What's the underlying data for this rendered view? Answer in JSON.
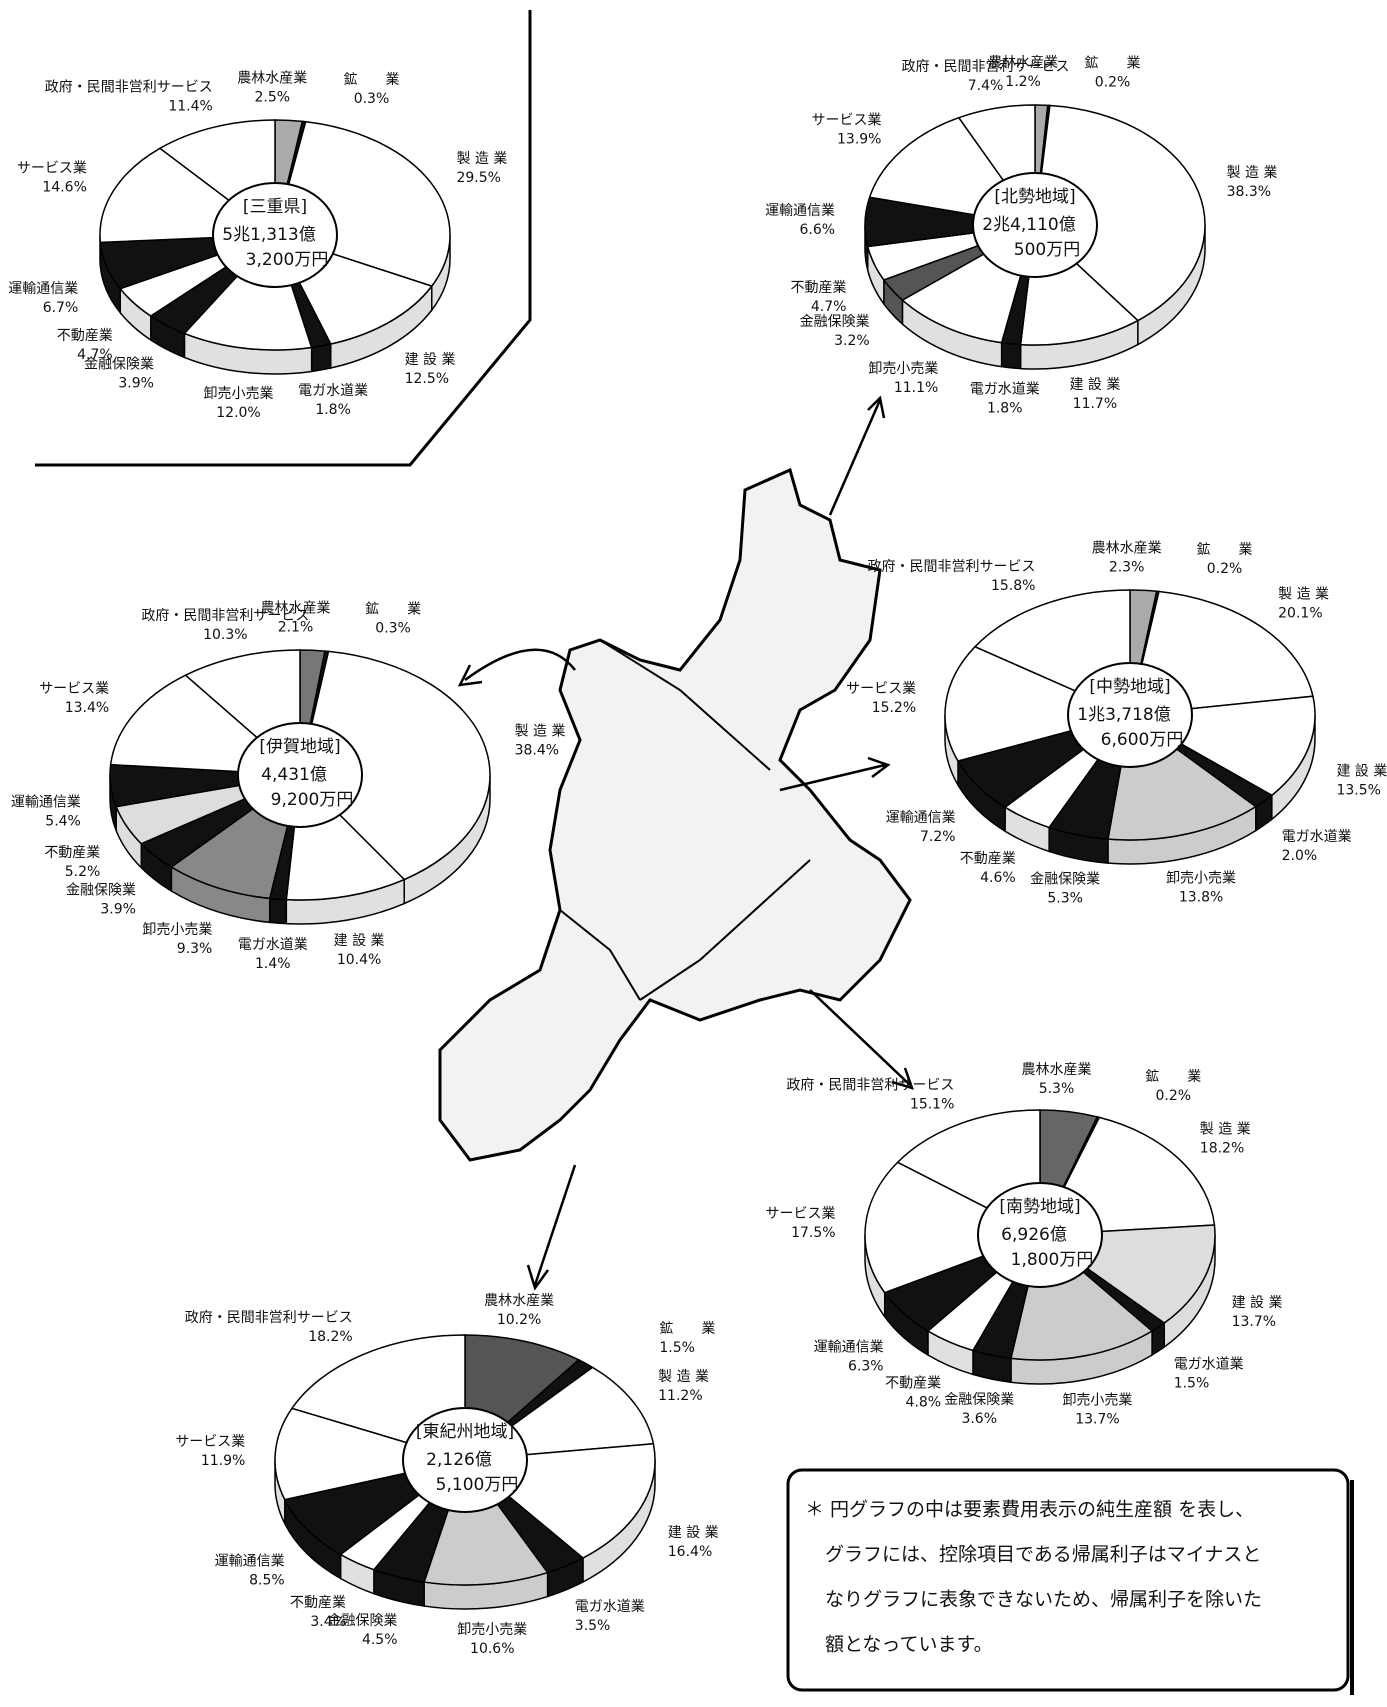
{
  "chart_data": [
    {
      "type": "pie",
      "title": "[三重県]",
      "center_text": [
        "5兆1,313億",
        "3,200万円"
      ],
      "categories": [
        "農林水産業",
        "鉱　　業",
        "製 造 業",
        "建 設 業",
        "電ガ水道業",
        "卸売小売業",
        "金融保険業",
        "不動産業",
        "運輸通信業",
        "サービス業",
        "政府・民間非営利サービス"
      ],
      "values": [
        2.5,
        0.3,
        29.5,
        12.5,
        1.8,
        12.0,
        3.9,
        4.7,
        6.7,
        14.6,
        11.4
      ],
      "value_labels": [
        "2.5%",
        "0.3%",
        "29.5%",
        "12.5%",
        "1.8%",
        "12.0%",
        "3.9%",
        "4.7%",
        "6.7%",
        "14.6%",
        "11.4%"
      ],
      "colors": [
        "#aaaaaa",
        "#111111",
        "#ffffff",
        "#ffffff",
        "#111111",
        "#ffffff",
        "#111111",
        "#ffffff",
        "#111111",
        "#ffffff",
        "#ffffff"
      ]
    },
    {
      "type": "pie",
      "title": "[北勢地域]",
      "center_text": [
        "2兆4,110億",
        "500万円"
      ],
      "categories": [
        "農林水産業",
        "鉱　　業",
        "製 造 業",
        "建 設 業",
        "電ガ水道業",
        "卸売小売業",
        "金融保険業",
        "不動産業",
        "運輸通信業",
        "サービス業",
        "政府・民間非営利サービス"
      ],
      "values": [
        1.2,
        0.2,
        38.3,
        11.7,
        1.8,
        11.1,
        3.2,
        4.7,
        6.6,
        13.9,
        7.4
      ],
      "value_labels": [
        "1.2%",
        "0.2%",
        "38.3%",
        "11.7%",
        "1.8%",
        "11.1%",
        "3.2%",
        "4.7%",
        "6.6%",
        "13.9%",
        "7.4%"
      ],
      "colors": [
        "#aaaaaa",
        "#111111",
        "#ffffff",
        "#ffffff",
        "#111111",
        "#ffffff",
        "#555555",
        "#ffffff",
        "#111111",
        "#ffffff",
        "#ffffff"
      ]
    },
    {
      "type": "pie",
      "title": "[伊賀地域]",
      "center_text": [
        "4,431億",
        "9,200万円"
      ],
      "categories": [
        "農林水産業",
        "鉱　　業",
        "製 造 業",
        "建 設 業",
        "電ガ水道業",
        "卸売小売業",
        "金融保険業",
        "不動産業",
        "運輸通信業",
        "サービス業",
        "政府・民間非営利サービス"
      ],
      "values": [
        2.1,
        0.3,
        38.4,
        10.4,
        1.4,
        9.3,
        3.9,
        5.2,
        5.4,
        13.4,
        10.3
      ],
      "value_labels": [
        "2.1%",
        "0.3%",
        "38.4%",
        "10.4%",
        "1.4%",
        "9.3%",
        "3.9%",
        "5.2%",
        "5.4%",
        "13.4%",
        "10.3%"
      ],
      "colors": [
        "#777777",
        "#111111",
        "#ffffff",
        "#ffffff",
        "#111111",
        "#888888",
        "#111111",
        "#dddddd",
        "#111111",
        "#ffffff",
        "#ffffff"
      ]
    },
    {
      "type": "pie",
      "title": "[中勢地域]",
      "center_text": [
        "1兆3,718億",
        "6,600万円"
      ],
      "categories": [
        "農林水産業",
        "鉱　　業",
        "製 造 業",
        "建 設 業",
        "電ガ水道業",
        "卸売小売業",
        "金融保険業",
        "不動産業",
        "運輸通信業",
        "サービス業",
        "政府・民間非営利サービス"
      ],
      "values": [
        2.3,
        0.2,
        20.1,
        13.5,
        2.0,
        13.8,
        5.3,
        4.6,
        7.2,
        15.2,
        15.8
      ],
      "value_labels": [
        "2.3%",
        "0.2%",
        "20.1%",
        "13.5%",
        "2.0%",
        "13.8%",
        "5.3%",
        "4.6%",
        "7.2%",
        "15.2%",
        "15.8%"
      ],
      "colors": [
        "#aaaaaa",
        "#111111",
        "#ffffff",
        "#ffffff",
        "#111111",
        "#cccccc",
        "#111111",
        "#ffffff",
        "#111111",
        "#ffffff",
        "#ffffff"
      ]
    },
    {
      "type": "pie",
      "title": "[南勢地域]",
      "center_text": [
        "6,926億",
        "1,800万円"
      ],
      "categories": [
        "農林水産業",
        "鉱　　業",
        "製 造 業",
        "建 設 業",
        "電ガ水道業",
        "卸売小売業",
        "金融保険業",
        "不動産業",
        "運輸通信業",
        "サービス業",
        "政府・民間非営利サービス"
      ],
      "values": [
        5.3,
        0.2,
        18.2,
        13.7,
        1.5,
        13.7,
        3.6,
        4.8,
        6.3,
        17.5,
        15.1
      ],
      "value_labels": [
        "5.3%",
        "0.2%",
        "18.2%",
        "13.7%",
        "1.5%",
        "13.7%",
        "3.6%",
        "4.8%",
        "6.3%",
        "17.5%",
        "15.1%"
      ],
      "colors": [
        "#666666",
        "#111111",
        "#ffffff",
        "#dddddd",
        "#111111",
        "#cccccc",
        "#111111",
        "#ffffff",
        "#111111",
        "#ffffff",
        "#ffffff"
      ]
    },
    {
      "type": "pie",
      "title": "[東紀州地域]",
      "center_text": [
        "2,126億",
        "5,100万円"
      ],
      "categories": [
        "農林水産業",
        "鉱　　業",
        "製 造 業",
        "建 設 業",
        "電ガ水道業",
        "卸売小売業",
        "金融保険業",
        "不動産業",
        "運輸通信業",
        "サービス業",
        "政府・民間非営利サービス"
      ],
      "values": [
        10.2,
        1.5,
        11.2,
        16.4,
        3.5,
        10.6,
        4.5,
        3.4,
        8.5,
        11.9,
        18.2
      ],
      "value_labels": [
        "10.2%",
        "1.5%",
        "11.2%",
        "16.4%",
        "3.5%",
        "10.6%",
        "4.5%",
        "3.4%",
        "8.5%",
        "11.9%",
        "18.2%"
      ],
      "colors": [
        "#555555",
        "#111111",
        "#ffffff",
        "#ffffff",
        "#111111",
        "#cccccc",
        "#111111",
        "#ffffff",
        "#111111",
        "#ffffff",
        "#ffffff"
      ]
    }
  ],
  "note": [
    "＊ 円グラフの中は要素費用表示の純生産額 を表し、",
    "グラフには、控除項目である帰属利子はマイナスと",
    "なりグラフに表象できないため、帰属利子を除いた",
    "額となっています。"
  ]
}
